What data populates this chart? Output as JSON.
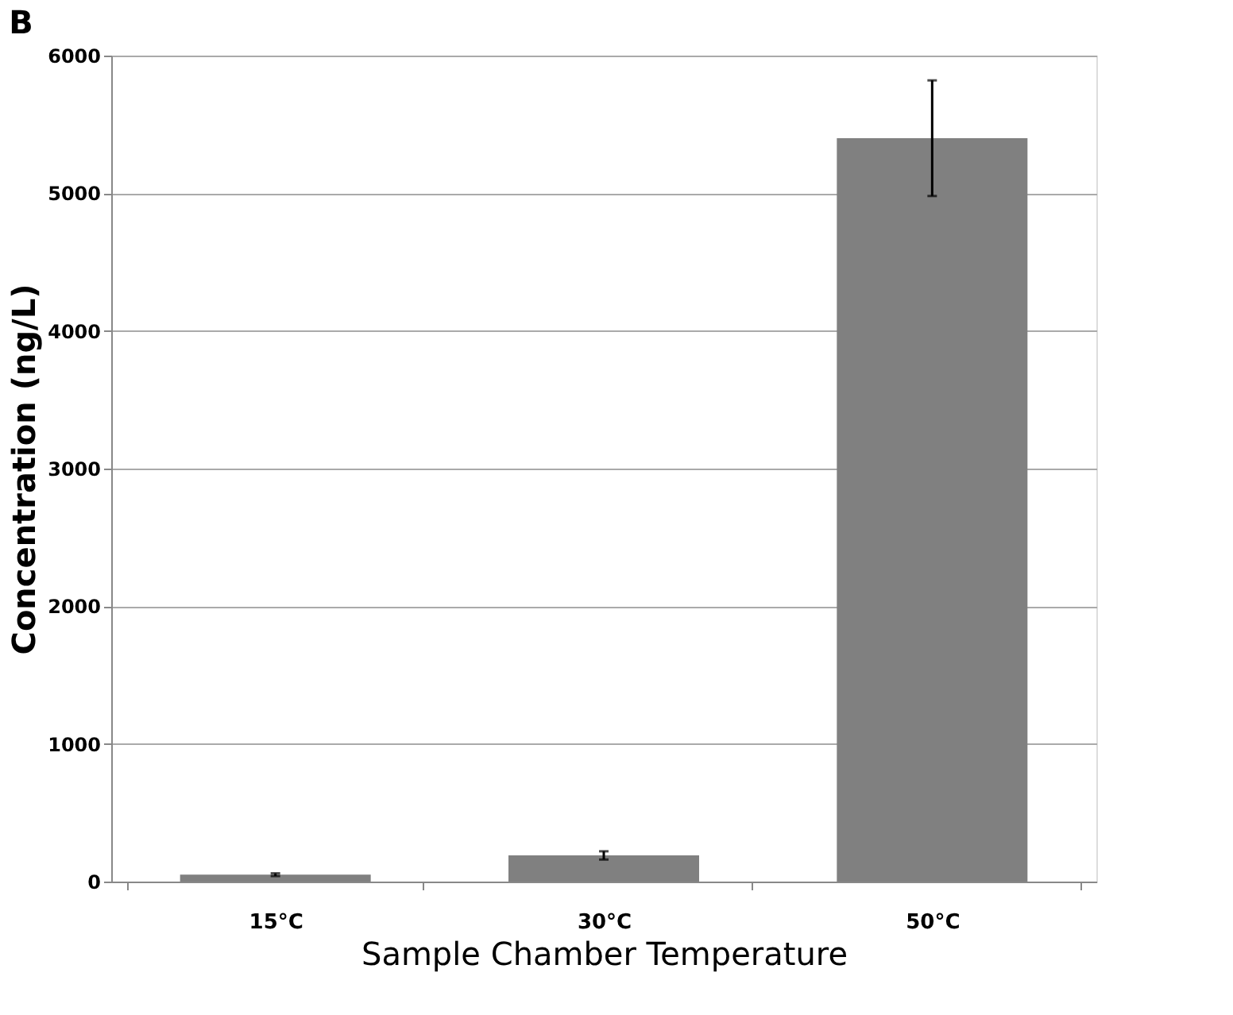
{
  "chart_data": {
    "type": "bar",
    "title": "B",
    "xlabel": "Sample Chamber Temperature",
    "ylabel": "Concentration (ng/L)",
    "categories": [
      "15°C",
      "30°C",
      "50°C"
    ],
    "values": [
      50,
      190,
      5400
    ],
    "errors": [
      10,
      30,
      420
    ],
    "color": "#808080",
    "ylim": [
      0,
      6000
    ],
    "yticks": [
      0,
      1000,
      2000,
      3000,
      4000,
      5000,
      6000
    ],
    "grid": "y"
  }
}
